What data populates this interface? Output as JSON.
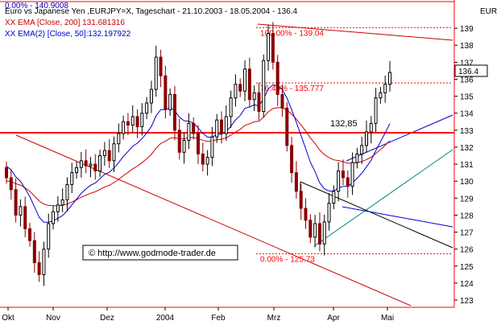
{
  "header": {
    "line1": "0.00% - 140.9008",
    "title": "Euro vs Japanese Yen ,EURJPY=X, Tageschart - 21.10.2003 - 18.05.2004 - 136.4",
    "ema200": "XX EMA [Close, 200] 131.681316",
    "ema50": "XX EMA(2) [Close, 50]:132.197922"
  },
  "currency": "EUR",
  "watermark": "© http://www.godmode-trader.de",
  "last_price_label": "136.4",
  "colors": {
    "up_candle": "#000000",
    "down_candle": "#8b0000",
    "support_line": "#ff0000",
    "fib_label": "#ff0000",
    "ema200": "#cc0000",
    "ema50": "#0000cc",
    "trend_green": "#008080",
    "channel_red": "#cc0000"
  },
  "chart_data": {
    "type": "candlestick",
    "title": "Euro vs Japanese Yen ,EURJPY=X, Tageschart - 21.10.2003 - 18.05.2004 - 136.4",
    "yaxis": {
      "range": [
        123,
        140
      ],
      "ticks": [
        123,
        124,
        125,
        126,
        127,
        128,
        129,
        130,
        131,
        132,
        133,
        134,
        135,
        136,
        137,
        138,
        139
      ],
      "position": "right"
    },
    "xaxis": {
      "ticks": [
        "Okt",
        "Nov",
        "Dez",
        "2004",
        "Feb",
        "Mrz",
        "Apr",
        "Mai"
      ]
    },
    "grid": false,
    "candles_close": [
      130.2,
      129.5,
      128.0,
      128.5,
      127.2,
      126.5,
      125.2,
      124.5,
      126.0,
      127.5,
      128.2,
      128.6,
      128.9,
      129.8,
      130.5,
      130.8,
      131.2,
      130.9,
      131.0,
      130.6,
      131.5,
      131.8,
      131.2,
      132.2,
      132.8,
      133.5,
      133.3,
      133.8,
      133.2,
      134.0,
      134.6,
      135.4,
      137.3,
      136.2,
      134.2,
      135.1,
      133.0,
      131.7,
      132.4,
      133.4,
      132.8,
      131.6,
      131.0,
      131.4,
      132.6,
      133.6,
      132.8,
      133.8,
      134.9,
      135.7,
      135.3,
      136.6,
      134.8,
      135.2,
      134.1,
      137.1,
      138.7,
      137.0,
      135.1,
      134.3,
      132.1,
      130.5,
      129.4,
      128.4,
      127.7,
      126.7,
      127.5,
      126.3,
      127.6,
      128.7,
      129.4,
      130.6,
      130.2,
      129.7,
      131.1,
      131.6,
      132.1,
      132.9,
      133.4,
      134.9,
      135.2,
      135.7,
      136.4
    ],
    "horizontal_line": {
      "value": 132.85,
      "label": "132,85"
    },
    "fibonacci": [
      {
        "label": "100.00% - 139.04",
        "value": 139.04
      },
      {
        "label": "76.40% - 135.777",
        "value": 135.777
      },
      {
        "label": "0.00% - 125.73",
        "value": 125.73
      }
    ],
    "last_value": 136.4,
    "indicators": [
      {
        "name": "XX EMA [Close, 200]",
        "value": 131.681316
      },
      {
        "name": "XX EMA(2) [Close, 50]",
        "value": 132.197922
      }
    ]
  }
}
